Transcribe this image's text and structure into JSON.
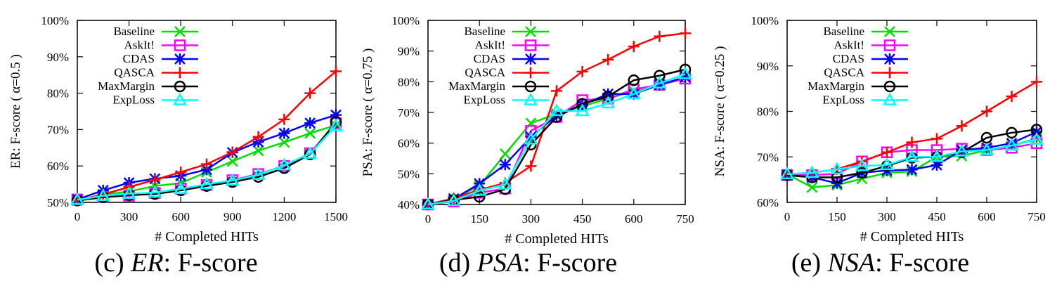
{
  "charts": [
    {
      "caption": {
        "label": "(c)",
        "name": "ER",
        "suffix": ": F-score"
      },
      "chart_data": {
        "type": "line",
        "ylabel": "ER: F-score ( α=0.5 )",
        "xlabel": "# Completed HITs",
        "xlim": [
          0,
          1500
        ],
        "ylim": [
          0.5,
          1.0
        ],
        "xticks": [
          0,
          300,
          600,
          900,
          1200,
          1500
        ],
        "xtick_labels": [
          "0",
          "300",
          "600",
          "900",
          "1200",
          "1500"
        ],
        "yticks": [
          0.5,
          0.6,
          0.7,
          0.8,
          0.9,
          1.0
        ],
        "ytick_labels": [
          "50%",
          "60%",
          "70%",
          "80%",
          "90%",
          "100%"
        ],
        "legend_position": "top-left",
        "grid": false,
        "series": [
          {
            "name": "Baseline",
            "color": "#00dd00",
            "marker": "x",
            "x": [
              0,
              150,
              300,
              450,
              600,
              750,
              900,
              1050,
              1200,
              1350,
              1500
            ],
            "y": [
              0.505,
              0.521,
              0.53,
              0.545,
              0.553,
              0.583,
              0.613,
              0.642,
              0.665,
              0.69,
              0.712
            ]
          },
          {
            "name": "AskIt!",
            "color": "#ff00ff",
            "marker": "square",
            "x": [
              0,
              150,
              300,
              450,
              600,
              750,
              900,
              1050,
              1200,
              1350,
              1500
            ],
            "y": [
              0.508,
              0.515,
              0.518,
              0.526,
              0.538,
              0.548,
              0.561,
              0.578,
              0.6,
              0.635,
              0.718
            ]
          },
          {
            "name": "CDAS",
            "color": "#0000ff",
            "marker": "asterisk",
            "x": [
              0,
              150,
              300,
              450,
              600,
              750,
              900,
              1050,
              1200,
              1350,
              1500
            ],
            "y": [
              0.508,
              0.533,
              0.554,
              0.565,
              0.573,
              0.59,
              0.637,
              0.666,
              0.69,
              0.718,
              0.74
            ]
          },
          {
            "name": "QASCA",
            "color": "#ff0000",
            "marker": "plus",
            "x": [
              0,
              150,
              300,
              450,
              600,
              750,
              900,
              1050,
              1200,
              1350,
              1500
            ],
            "y": [
              0.505,
              0.522,
              0.542,
              0.562,
              0.583,
              0.605,
              0.638,
              0.68,
              0.728,
              0.8,
              0.86
            ]
          },
          {
            "name": "MaxMargin",
            "color": "#000000",
            "marker": "circle",
            "x": [
              0,
              150,
              300,
              450,
              600,
              750,
              900,
              1050,
              1200,
              1350,
              1500
            ],
            "y": [
              0.505,
              0.514,
              0.52,
              0.523,
              0.533,
              0.545,
              0.556,
              0.57,
              0.594,
              0.632,
              0.721
            ]
          },
          {
            "name": "ExpLoss",
            "color": "#00ffff",
            "marker": "triangle",
            "x": [
              0,
              150,
              300,
              450,
              600,
              750,
              900,
              1050,
              1200,
              1350,
              1500
            ],
            "y": [
              0.507,
              0.518,
              0.524,
              0.527,
              0.537,
              0.55,
              0.56,
              0.576,
              0.602,
              0.634,
              0.71
            ]
          }
        ]
      }
    },
    {
      "caption": {
        "label": "(d)",
        "name": "PSA",
        "suffix": ": F-score"
      },
      "chart_data": {
        "type": "line",
        "ylabel": "PSA: F-score ( α=0.75 )",
        "xlabel": "# Completed HITs",
        "xlim": [
          0,
          750
        ],
        "ylim": [
          0.4,
          1.0
        ],
        "xticks": [
          0,
          150,
          300,
          450,
          600,
          750
        ],
        "xtick_labels": [
          "0",
          "150",
          "300",
          "450",
          "600",
          "750"
        ],
        "yticks": [
          0.4,
          0.5,
          0.6,
          0.7,
          0.8,
          0.9,
          1.0
        ],
        "ytick_labels": [
          "40%",
          "50%",
          "60%",
          "70%",
          "80%",
          "90%",
          "100%"
        ],
        "legend_position": "top-left",
        "grid": false,
        "series": [
          {
            "name": "Baseline",
            "color": "#00dd00",
            "marker": "x",
            "x": [
              0,
              75,
              150,
              225,
              300,
              375,
              450,
              525,
              600,
              675,
              750
            ],
            "y": [
              0.4,
              0.42,
              0.46,
              0.565,
              0.665,
              0.695,
              0.72,
              0.745,
              0.77,
              0.79,
              0.815
            ]
          },
          {
            "name": "AskIt!",
            "color": "#ff00ff",
            "marker": "square",
            "x": [
              0,
              75,
              150,
              225,
              300,
              375,
              450,
              525,
              600,
              675,
              750
            ],
            "y": [
              0.4,
              0.41,
              0.438,
              0.452,
              0.64,
              0.685,
              0.74,
              0.745,
              0.775,
              0.79,
              0.81
            ]
          },
          {
            "name": "CDAS",
            "color": "#0000ff",
            "marker": "asterisk",
            "x": [
              0,
              75,
              150,
              225,
              300,
              375,
              450,
              525,
              600,
              675,
              750
            ],
            "y": [
              0.4,
              0.418,
              0.468,
              0.53,
              0.62,
              0.69,
              0.725,
              0.76,
              0.76,
              0.79,
              0.815
            ]
          },
          {
            "name": "QASCA",
            "color": "#ff0000",
            "marker": "plus",
            "x": [
              0,
              75,
              150,
              225,
              300,
              375,
              450,
              525,
              600,
              675,
              750
            ],
            "y": [
              0.4,
              0.42,
              0.448,
              0.47,
              0.525,
              0.77,
              0.833,
              0.872,
              0.915,
              0.948,
              0.958
            ]
          },
          {
            "name": "MaxMargin",
            "color": "#000000",
            "marker": "circle",
            "x": [
              0,
              75,
              150,
              225,
              300,
              375,
              450,
              525,
              600,
              675,
              750
            ],
            "y": [
              0.4,
              0.415,
              0.425,
              0.45,
              0.595,
              0.685,
              0.728,
              0.752,
              0.805,
              0.82,
              0.84
            ]
          },
          {
            "name": "ExpLoss",
            "color": "#00ffff",
            "marker": "triangle",
            "x": [
              0,
              75,
              150,
              225,
              300,
              375,
              450,
              525,
              600,
              675,
              750
            ],
            "y": [
              0.4,
              0.412,
              0.445,
              0.465,
              0.612,
              0.705,
              0.705,
              0.73,
              0.76,
              0.795,
              0.825
            ]
          }
        ]
      }
    },
    {
      "caption": {
        "label": "(e)",
        "name": "NSA",
        "suffix": ": F-score"
      },
      "chart_data": {
        "type": "line",
        "ylabel": "NSA: F-score ( α=0.25 )",
        "xlabel": "# Completed HITs",
        "xlim": [
          0,
          750
        ],
        "ylim": [
          0.6,
          1.0
        ],
        "xticks": [
          0,
          150,
          300,
          450,
          600,
          750
        ],
        "xtick_labels": [
          "0",
          "150",
          "300",
          "450",
          "600",
          "750"
        ],
        "yticks": [
          0.6,
          0.7,
          0.8,
          0.9,
          1.0
        ],
        "ytick_labels": [
          "60%",
          "70%",
          "80%",
          "90%",
          "100%"
        ],
        "legend_position": "top-left",
        "grid": false,
        "series": [
          {
            "name": "Baseline",
            "color": "#00dd00",
            "marker": "x",
            "x": [
              0,
              75,
              150,
              225,
              300,
              375,
              450,
              525,
              600,
              675,
              750
            ],
            "y": [
              0.662,
              0.633,
              0.638,
              0.652,
              0.665,
              0.668,
              0.7,
              0.702,
              0.715,
              0.725,
              0.74
            ]
          },
          {
            "name": "AskIt!",
            "color": "#ff00ff",
            "marker": "square",
            "x": [
              0,
              75,
              150,
              225,
              300,
              375,
              450,
              525,
              600,
              675,
              750
            ],
            "y": [
              0.66,
              0.66,
              0.663,
              0.69,
              0.71,
              0.715,
              0.715,
              0.718,
              0.715,
              0.72,
              0.73
            ]
          },
          {
            "name": "CDAS",
            "color": "#0000ff",
            "marker": "asterisk",
            "x": [
              0,
              75,
              150,
              225,
              300,
              375,
              450,
              525,
              600,
              675,
              750
            ],
            "y": [
              0.66,
              0.655,
              0.642,
              0.665,
              0.67,
              0.672,
              0.682,
              0.715,
              0.72,
              0.73,
              0.755
            ]
          },
          {
            "name": "QASCA",
            "color": "#ff0000",
            "marker": "plus",
            "x": [
              0,
              75,
              150,
              225,
              300,
              375,
              450,
              525,
              600,
              675,
              750
            ],
            "y": [
              0.662,
              0.665,
              0.673,
              0.69,
              0.71,
              0.732,
              0.74,
              0.768,
              0.8,
              0.833,
              0.865
            ]
          },
          {
            "name": "MaxMargin",
            "color": "#000000",
            "marker": "circle",
            "x": [
              0,
              75,
              150,
              225,
              300,
              375,
              450,
              525,
              600,
              675,
              750
            ],
            "y": [
              0.66,
              0.655,
              0.655,
              0.665,
              0.68,
              0.698,
              0.7,
              0.71,
              0.742,
              0.753,
              0.76
            ]
          },
          {
            "name": "ExpLoss",
            "color": "#00ffff",
            "marker": "triangle",
            "x": [
              0,
              75,
              150,
              225,
              300,
              375,
              450,
              525,
              600,
              675,
              750
            ],
            "y": [
              0.662,
              0.665,
              0.673,
              0.68,
              0.682,
              0.7,
              0.7,
              0.712,
              0.715,
              0.725,
              0.738
            ]
          }
        ]
      }
    }
  ]
}
